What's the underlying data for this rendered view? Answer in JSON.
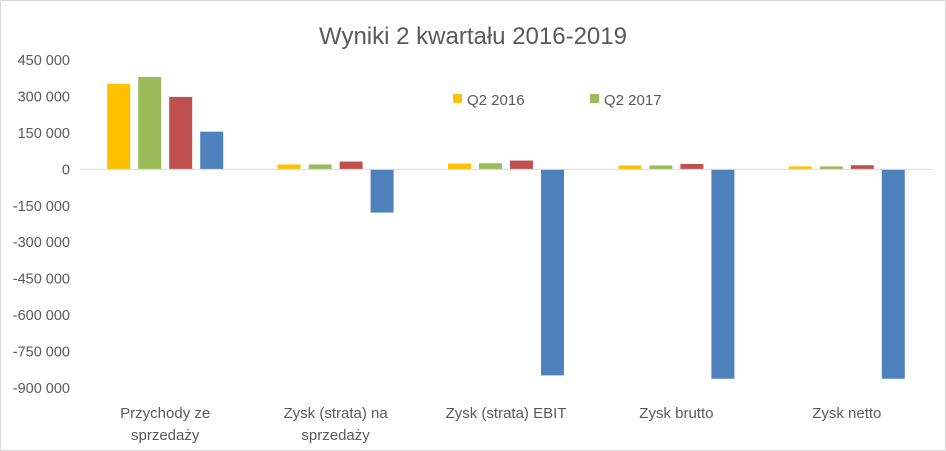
{
  "chart_data": {
    "type": "bar",
    "title": "Wyniki 2 kwartału 2016-2019",
    "categories": [
      [
        "Przychody ze",
        "sprzedaży"
      ],
      [
        "Zysk (strata) na",
        "sprzedaży"
      ],
      [
        "Zysk (strata) EBIT"
      ],
      [
        "Zysk brutto"
      ],
      [
        "Zysk netto"
      ]
    ],
    "series": [
      {
        "name": "Q2 2016",
        "color": "#ffc000",
        "values": [
          352000,
          20000,
          24000,
          16000,
          12000
        ]
      },
      {
        "name": "Q2 2017",
        "color": "#9bbb59",
        "values": [
          380000,
          20000,
          25000,
          16000,
          12000
        ]
      },
      {
        "color": "#c0504d",
        "values": [
          298000,
          32000,
          36000,
          22000,
          17000
        ]
      },
      {
        "color": "#4f81bd",
        "values": [
          155000,
          -178000,
          -848000,
          -862000,
          -862000
        ]
      }
    ],
    "ylim": [
      -900000,
      450000
    ],
    "yticks": [
      450000,
      300000,
      150000,
      0,
      -150000,
      -300000,
      -450000,
      -600000,
      -750000,
      -900000
    ],
    "ytick_labels": [
      "450 000",
      "300 000",
      "150 000",
      "0",
      "-150 000",
      "-300 000",
      "-450 000",
      "-600 000",
      "-750 000",
      "-900 000"
    ],
    "legend_position": "top-right",
    "grid": false
  }
}
